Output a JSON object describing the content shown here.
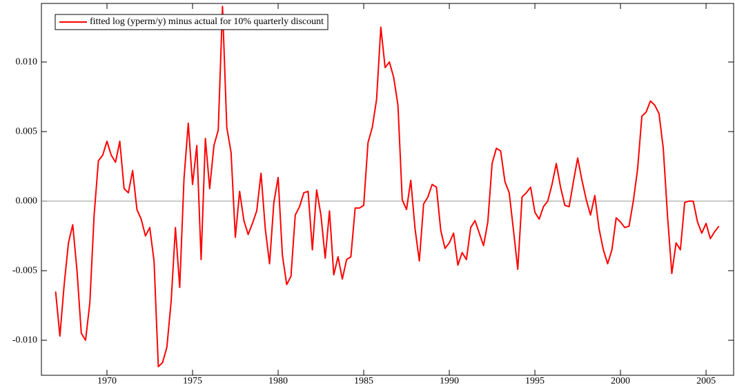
{
  "chart_data": {
    "type": "line",
    "x": [
      1967,
      1967.25,
      1967.5,
      1967.75,
      1968,
      1968.25,
      1968.5,
      1968.75,
      1969,
      1969.25,
      1969.5,
      1969.75,
      1970,
      1970.25,
      1970.5,
      1970.75,
      1971,
      1971.25,
      1971.5,
      1971.75,
      1972,
      1972.25,
      1972.5,
      1972.75,
      1973,
      1973.25,
      1973.5,
      1973.75,
      1974,
      1974.25,
      1974.5,
      1974.75,
      1975,
      1975.25,
      1975.5,
      1975.75,
      1976,
      1976.25,
      1976.5,
      1976.75,
      1977,
      1977.25,
      1977.5,
      1977.75,
      1978,
      1978.25,
      1978.5,
      1978.75,
      1979,
      1979.25,
      1979.5,
      1979.75,
      1980,
      1980.25,
      1980.5,
      1980.75,
      1981,
      1981.25,
      1981.5,
      1981.75,
      1982,
      1982.25,
      1982.5,
      1982.75,
      1983,
      1983.25,
      1983.5,
      1983.75,
      1984,
      1984.25,
      1984.5,
      1984.75,
      1985,
      1985.25,
      1985.5,
      1985.75,
      1986,
      1986.25,
      1986.5,
      1986.75,
      1987,
      1987.25,
      1987.5,
      1987.75,
      1988,
      1988.25,
      1988.5,
      1988.75,
      1989,
      1989.25,
      1989.5,
      1989.75,
      1990,
      1990.25,
      1990.5,
      1990.75,
      1991,
      1991.25,
      1991.5,
      1991.75,
      1992,
      1992.25,
      1992.5,
      1992.75,
      1993,
      1993.25,
      1993.5,
      1993.75,
      1994,
      1994.25,
      1994.5,
      1994.75,
      1995,
      1995.25,
      1995.5,
      1995.75,
      1996,
      1996.25,
      1996.5,
      1996.75,
      1997,
      1997.25,
      1997.5,
      1997.75,
      1998,
      1998.25,
      1998.5,
      1998.75,
      1999,
      1999.25,
      1999.5,
      1999.75,
      2000,
      2000.25,
      2000.5,
      2000.75,
      2001,
      2001.25,
      2001.5,
      2001.75,
      2002,
      2002.25,
      2002.5,
      2002.75,
      2003,
      2003.25,
      2003.5,
      2003.75,
      2004,
      2004.25,
      2004.5,
      2004.75,
      2005,
      2005.25,
      2005.5,
      2005.75
    ],
    "series": [
      {
        "name": "fitted log (yperm/y) minus actual for 10% quarterly discount",
        "color": "#ff0000",
        "values": [
          -0.0065,
          -0.0097,
          -0.006,
          -0.003,
          -0.0017,
          -0.005,
          -0.0095,
          -0.01,
          -0.0073,
          -0.001,
          0.0029,
          0.0033,
          0.0043,
          0.0033,
          0.0028,
          0.0043,
          0.0009,
          0.0006,
          0.0022,
          -0.0006,
          -0.0013,
          -0.0025,
          -0.0019,
          -0.0043,
          -0.0119,
          -0.0116,
          -0.0105,
          -0.0072,
          -0.0019,
          -0.0062,
          0.0016,
          0.0056,
          0.0012,
          0.004,
          -0.0042,
          0.0045,
          0.0009,
          0.004,
          0.0051,
          0.014,
          0.0053,
          0.0035,
          -0.0026,
          0.0007,
          -0.0014,
          -0.0024,
          -0.0016,
          -0.0007,
          0.002,
          -0.002,
          -0.0045,
          -0.0001,
          0.0017,
          -0.0039,
          -0.006,
          -0.0054,
          -0.001,
          -0.0004,
          0.0006,
          0.0007,
          -0.0035,
          0.0008,
          -0.001,
          -0.0041,
          -0.0007,
          -0.0053,
          -0.004,
          -0.0056,
          -0.0042,
          -0.004,
          -0.0005,
          -0.0005,
          -0.0003,
          0.0042,
          0.0053,
          0.0073,
          0.0125,
          0.0096,
          0.01,
          0.0089,
          0.0069,
          0.0001,
          -0.0006,
          0.0015,
          -0.002,
          -0.0043,
          -0.0002,
          0.0003,
          0.0012,
          0.001,
          -0.0021,
          -0.0034,
          -0.003,
          -0.0023,
          -0.0046,
          -0.0037,
          -0.0042,
          -0.0019,
          -0.0014,
          -0.0023,
          -0.0032,
          -0.0015,
          0.0027,
          0.0038,
          0.0036,
          0.0014,
          0.0006,
          -0.0021,
          -0.0049,
          0.0003,
          0.0006,
          0.001,
          -0.0008,
          -0.0013,
          -0.0004,
          0.0,
          0.0012,
          0.0027,
          0.001,
          -0.0003,
          -0.0004,
          0.0014,
          0.0031,
          0.0015,
          0.0001,
          -0.001,
          0.0004,
          -0.002,
          -0.0035,
          -0.0045,
          -0.0035,
          -0.0012,
          -0.0015,
          -0.0019,
          -0.0018,
          0.0,
          0.0023,
          0.0061,
          0.0064,
          0.0072,
          0.0069,
          0.0063,
          0.0038,
          -0.0011,
          -0.0052,
          -0.003,
          -0.0035,
          -0.0001,
          0.0,
          0.0,
          -0.0015,
          -0.0023,
          -0.0016,
          -0.0027,
          -0.0022,
          -0.0018
        ]
      }
    ],
    "xlim": [
      1966.17,
      2006.61
    ],
    "xticks": [
      1970,
      1975,
      1980,
      1985,
      1990,
      1995,
      2000,
      2005
    ],
    "ylim": [
      -0.01252,
      0.01421
    ],
    "yticks": [
      {
        "value": -0.01,
        "label": "-0.010"
      },
      -0.005,
      {
        "value": 0,
        "label": "0.000"
      },
      0.005,
      {
        "value": 0.01,
        "label": "0.010"
      }
    ],
    "reference_line": 0,
    "legend": "top-left"
  }
}
